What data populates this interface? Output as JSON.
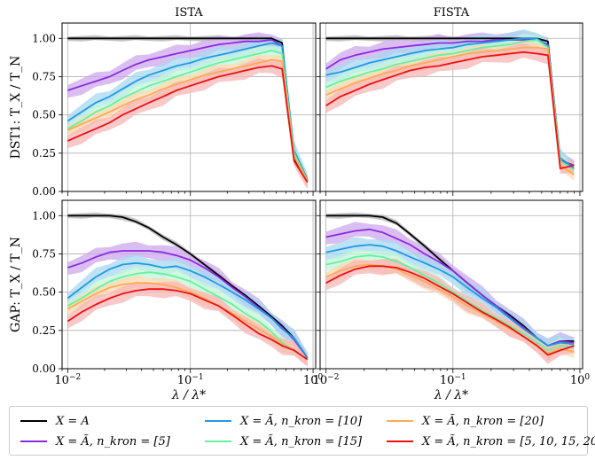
{
  "chart_data": [
    {
      "type": "line",
      "title": "ISTA",
      "ylabel": "DST1:   T_X / T_N",
      "xlabel": "",
      "xscale": "log",
      "xlim": [
        0.009,
        1.05
      ],
      "ylim": [
        0,
        1.1
      ],
      "x": [
        0.01,
        0.013,
        0.017,
        0.022,
        0.028,
        0.036,
        0.046,
        0.06,
        0.077,
        0.1,
        0.13,
        0.17,
        0.22,
        0.28,
        0.36,
        0.46,
        0.56,
        0.7,
        0.9
      ],
      "series": [
        {
          "name": "X = A",
          "values": [
            1,
            1,
            1,
            1,
            1,
            1,
            1,
            1,
            1,
            1,
            1,
            1,
            1,
            1,
            1,
            1,
            0.97,
            0.22,
            0.07
          ]
        },
        {
          "name": "X = Ã, n_kron = [5]",
          "values": [
            0.66,
            0.69,
            0.72,
            0.75,
            0.79,
            0.83,
            0.86,
            0.88,
            0.9,
            0.92,
            0.94,
            0.96,
            0.97,
            0.98,
            0.98,
            0.99,
            0.95,
            0.25,
            0.07
          ]
        },
        {
          "name": "X = Ã, n_kron = [10]",
          "values": [
            0.46,
            0.52,
            0.58,
            0.62,
            0.67,
            0.72,
            0.76,
            0.79,
            0.82,
            0.84,
            0.87,
            0.89,
            0.91,
            0.93,
            0.95,
            0.97,
            0.95,
            0.27,
            0.08
          ]
        },
        {
          "name": "X = Ã, n_kron = [15]",
          "values": [
            0.41,
            0.46,
            0.52,
            0.56,
            0.61,
            0.65,
            0.69,
            0.72,
            0.75,
            0.78,
            0.81,
            0.84,
            0.86,
            0.88,
            0.9,
            0.92,
            0.9,
            0.25,
            0.07
          ]
        },
        {
          "name": "X = Ã, n_kron = [20]",
          "values": [
            0.4,
            0.44,
            0.48,
            0.52,
            0.56,
            0.6,
            0.63,
            0.67,
            0.7,
            0.73,
            0.76,
            0.78,
            0.8,
            0.82,
            0.84,
            0.86,
            0.85,
            0.23,
            0.07
          ]
        },
        {
          "name": "X = Ã, n_kron = [5,10,15,20]",
          "values": [
            0.33,
            0.37,
            0.41,
            0.45,
            0.5,
            0.54,
            0.58,
            0.62,
            0.66,
            0.69,
            0.72,
            0.75,
            0.77,
            0.79,
            0.81,
            0.82,
            0.8,
            0.2,
            0.06
          ]
        }
      ]
    },
    {
      "type": "line",
      "title": "FISTA",
      "ylabel": "",
      "xlabel": "",
      "xscale": "log",
      "xlim": [
        0.009,
        1.05
      ],
      "ylim": [
        0,
        1.1
      ],
      "x": [
        0.01,
        0.013,
        0.017,
        0.022,
        0.028,
        0.036,
        0.046,
        0.06,
        0.077,
        0.1,
        0.13,
        0.17,
        0.22,
        0.28,
        0.36,
        0.46,
        0.56,
        0.7,
        0.9
      ],
      "series": [
        {
          "name": "X = A",
          "values": [
            1,
            1,
            1,
            1,
            1,
            1,
            1,
            1,
            1,
            1,
            1,
            1,
            1,
            1,
            1,
            1,
            0.98,
            0.2,
            0.17
          ]
        },
        {
          "name": "X = Ã, n_kron = [5]",
          "values": [
            0.8,
            0.86,
            0.89,
            0.91,
            0.93,
            0.94,
            0.95,
            0.96,
            0.97,
            0.97,
            0.98,
            0.98,
            0.99,
            0.99,
            0.99,
            0.99,
            0.96,
            0.2,
            0.17
          ]
        },
        {
          "name": "X = Ã, n_kron = [10]",
          "values": [
            0.76,
            0.78,
            0.81,
            0.84,
            0.86,
            0.88,
            0.9,
            0.92,
            0.93,
            0.94,
            0.96,
            0.97,
            0.98,
            0.99,
            1.0,
            1.0,
            0.95,
            0.22,
            0.15
          ]
        },
        {
          "name": "X = Ã, n_kron = [15]",
          "values": [
            0.68,
            0.72,
            0.75,
            0.78,
            0.8,
            0.83,
            0.85,
            0.87,
            0.89,
            0.9,
            0.92,
            0.94,
            0.95,
            0.96,
            0.98,
            0.99,
            0.94,
            0.2,
            0.14
          ]
        },
        {
          "name": "X = Ã, n_kron = [20]",
          "values": [
            0.63,
            0.67,
            0.71,
            0.74,
            0.77,
            0.79,
            0.82,
            0.84,
            0.86,
            0.88,
            0.9,
            0.91,
            0.92,
            0.93,
            0.94,
            0.94,
            0.93,
            0.17,
            0.11
          ]
        },
        {
          "name": "X = Ã, n_kron = [5,10,15,20]",
          "values": [
            0.56,
            0.62,
            0.66,
            0.7,
            0.73,
            0.76,
            0.79,
            0.81,
            0.82,
            0.84,
            0.86,
            0.88,
            0.89,
            0.9,
            0.91,
            0.9,
            0.89,
            0.15,
            0.17
          ]
        }
      ]
    },
    {
      "type": "line",
      "title": "",
      "ylabel": "GAP:   T_X / T_N",
      "xlabel": "λ / λ*",
      "xscale": "log",
      "xlim": [
        0.009,
        1.05
      ],
      "ylim": [
        0,
        1.1
      ],
      "x": [
        0.01,
        0.013,
        0.017,
        0.022,
        0.028,
        0.036,
        0.046,
        0.06,
        0.077,
        0.1,
        0.13,
        0.17,
        0.22,
        0.28,
        0.36,
        0.46,
        0.56,
        0.7,
        0.9
      ],
      "series": [
        {
          "name": "X = A",
          "values": [
            1.0,
            1.0,
            1.0,
            1.0,
            0.99,
            0.96,
            0.92,
            0.86,
            0.81,
            0.75,
            0.68,
            0.61,
            0.54,
            0.48,
            0.41,
            0.34,
            0.28,
            0.2,
            0.07
          ]
        },
        {
          "name": "X = Ã, n_kron = [5]",
          "values": [
            0.66,
            0.69,
            0.73,
            0.76,
            0.77,
            0.77,
            0.77,
            0.76,
            0.74,
            0.71,
            0.66,
            0.6,
            0.53,
            0.47,
            0.4,
            0.33,
            0.27,
            0.19,
            0.07
          ]
        },
        {
          "name": "X = Ã, n_kron = [10]",
          "values": [
            0.46,
            0.53,
            0.6,
            0.65,
            0.68,
            0.69,
            0.68,
            0.66,
            0.67,
            0.64,
            0.6,
            0.55,
            0.5,
            0.45,
            0.39,
            0.33,
            0.26,
            0.2,
            0.07
          ]
        },
        {
          "name": "X = Ã, n_kron = [15]",
          "values": [
            0.41,
            0.46,
            0.52,
            0.57,
            0.6,
            0.62,
            0.63,
            0.62,
            0.6,
            0.57,
            0.52,
            0.47,
            0.42,
            0.36,
            0.31,
            0.24,
            0.17,
            0.12,
            0.06
          ]
        },
        {
          "name": "X = Ã, n_kron = [20]",
          "values": [
            0.39,
            0.44,
            0.49,
            0.53,
            0.55,
            0.56,
            0.56,
            0.55,
            0.53,
            0.5,
            0.46,
            0.41,
            0.36,
            0.31,
            0.26,
            0.21,
            0.16,
            0.12,
            0.06
          ]
        },
        {
          "name": "X = Ã, n_kron = [5,10,15,20]",
          "values": [
            0.31,
            0.37,
            0.42,
            0.46,
            0.49,
            0.51,
            0.52,
            0.52,
            0.51,
            0.49,
            0.45,
            0.41,
            0.35,
            0.29,
            0.23,
            0.19,
            0.15,
            0.12,
            0.06
          ]
        }
      ]
    },
    {
      "type": "line",
      "title": "",
      "ylabel": "",
      "xlabel": "λ / λ*",
      "xscale": "log",
      "xlim": [
        0.009,
        1.05
      ],
      "ylim": [
        0,
        1.1
      ],
      "x": [
        0.01,
        0.013,
        0.017,
        0.022,
        0.028,
        0.036,
        0.046,
        0.06,
        0.077,
        0.1,
        0.13,
        0.17,
        0.22,
        0.28,
        0.36,
        0.46,
        0.56,
        0.7,
        0.9
      ],
      "series": [
        {
          "name": "X = A",
          "values": [
            1.0,
            1.0,
            1.0,
            1.0,
            0.99,
            0.95,
            0.88,
            0.8,
            0.72,
            0.64,
            0.56,
            0.48,
            0.41,
            0.35,
            0.28,
            0.2,
            0.15,
            0.18,
            0.18
          ]
        },
        {
          "name": "X = Ã, n_kron = [5]",
          "values": [
            0.86,
            0.88,
            0.9,
            0.91,
            0.89,
            0.85,
            0.81,
            0.75,
            0.7,
            0.64,
            0.56,
            0.48,
            0.41,
            0.34,
            0.27,
            0.2,
            0.15,
            0.18,
            0.17
          ]
        },
        {
          "name": "X = Ã, n_kron = [10]",
          "values": [
            0.76,
            0.78,
            0.8,
            0.81,
            0.8,
            0.77,
            0.73,
            0.69,
            0.65,
            0.6,
            0.53,
            0.46,
            0.4,
            0.33,
            0.26,
            0.2,
            0.15,
            0.17,
            0.16
          ]
        },
        {
          "name": "X = Ã, n_kron = [15]",
          "values": [
            0.68,
            0.7,
            0.73,
            0.74,
            0.73,
            0.7,
            0.66,
            0.61,
            0.56,
            0.5,
            0.44,
            0.38,
            0.33,
            0.28,
            0.23,
            0.17,
            0.12,
            0.15,
            0.14
          ]
        },
        {
          "name": "X = Ã, n_kron = [20]",
          "values": [
            0.6,
            0.64,
            0.67,
            0.68,
            0.67,
            0.65,
            0.61,
            0.57,
            0.52,
            0.47,
            0.41,
            0.36,
            0.31,
            0.26,
            0.21,
            0.15,
            0.1,
            0.13,
            0.11
          ]
        },
        {
          "name": "X = Ã, n_kron = [5,10,15,20]",
          "values": [
            0.56,
            0.61,
            0.65,
            0.67,
            0.67,
            0.66,
            0.63,
            0.59,
            0.54,
            0.49,
            0.43,
            0.37,
            0.32,
            0.27,
            0.21,
            0.15,
            0.09,
            0.12,
            0.15
          ]
        }
      ]
    }
  ],
  "axes": {
    "y_ticks": [
      "0.00",
      "0.25",
      "0.50",
      "0.75",
      "1.00"
    ],
    "y_tick_values": [
      0,
      0.25,
      0.5,
      0.75,
      1.0
    ],
    "x_major_ticks": [
      0.01,
      0.1,
      1
    ],
    "y_axis_symbol": "T_X / T_N",
    "x_axis_symbol": "λ / λ*"
  },
  "row_labels": [
    "DST1:",
    "GAP:"
  ],
  "colors": {
    "A": "#000000",
    "k5": "#8a2be2",
    "k10": "#1e9be0",
    "k15": "#66f0a0",
    "k20": "#ffaa55",
    "k5_10_15_20": "#ee1111",
    "band_A": "#b0b0b0",
    "band_k5": "#cfa8ec",
    "band_k10": "#a8d8f2",
    "band_k15": "#c2f7d8",
    "band_k20": "#fdd8b0",
    "band_k5_10_15_20": "#f7b6b6"
  },
  "legend": {
    "items": [
      {
        "label": "X = A",
        "color_key": "A"
      },
      {
        "label": "X = Ã, n_kron = [5]",
        "color_key": "k5"
      },
      {
        "label": "X = Ã, n_kron = [10]",
        "color_key": "k10"
      },
      {
        "label": "X = Ã, n_kron = [15]",
        "color_key": "k15"
      },
      {
        "label": "X = Ã, n_kron = [20]",
        "color_key": "k20"
      },
      {
        "label": "X = Ã, n_kron = [5, 10, 15, 20]",
        "color_key": "k5_10_15_20"
      }
    ]
  }
}
